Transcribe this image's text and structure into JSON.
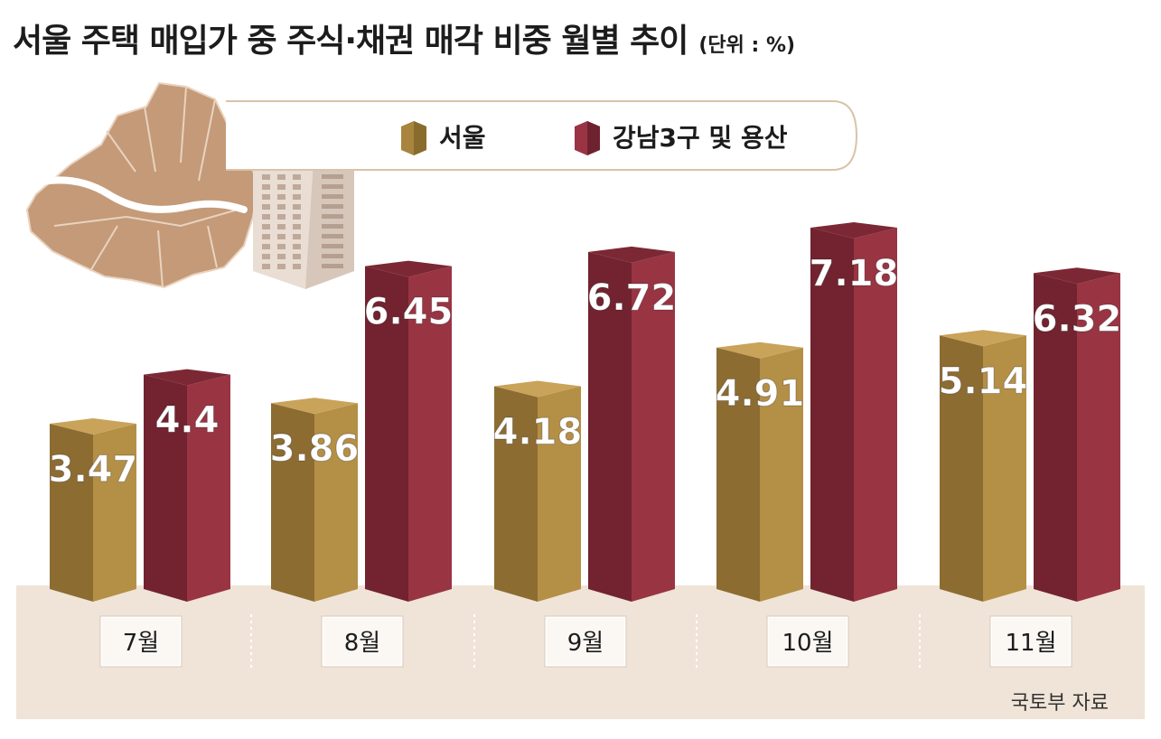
{
  "title": "서울 주택 매입가 중 주식·채권 매각 비중 월별 추이",
  "unit_label": "(단위 : %)",
  "source": "국토부 자료",
  "colors": {
    "seoul": "#a8843e",
    "gangnam": "#8a2c3a",
    "floor": "#efe4d7",
    "map": "#c49a78"
  },
  "chart_data": {
    "type": "bar",
    "title": "서울 주택 매입가 중 주식·채권 매각 비중 월별 추이",
    "unit": "%",
    "categories": [
      "7월",
      "8월",
      "9월",
      "10월",
      "11월"
    ],
    "series": [
      {
        "name": "서울",
        "values": [
          3.47,
          3.86,
          4.18,
          4.91,
          5.14
        ]
      },
      {
        "name": "강남3구 및 용산",
        "values": [
          4.4,
          6.45,
          6.72,
          7.18,
          6.32
        ]
      }
    ],
    "value_labels": [
      [
        "3.47",
        "3.86",
        "4.18",
        "4.91",
        "5.14"
      ],
      [
        "4.4",
        "6.45",
        "6.72",
        "7.18",
        "6.32"
      ]
    ],
    "ylim": [
      0,
      8
    ],
    "grid": false,
    "legend_position": "top-center"
  }
}
